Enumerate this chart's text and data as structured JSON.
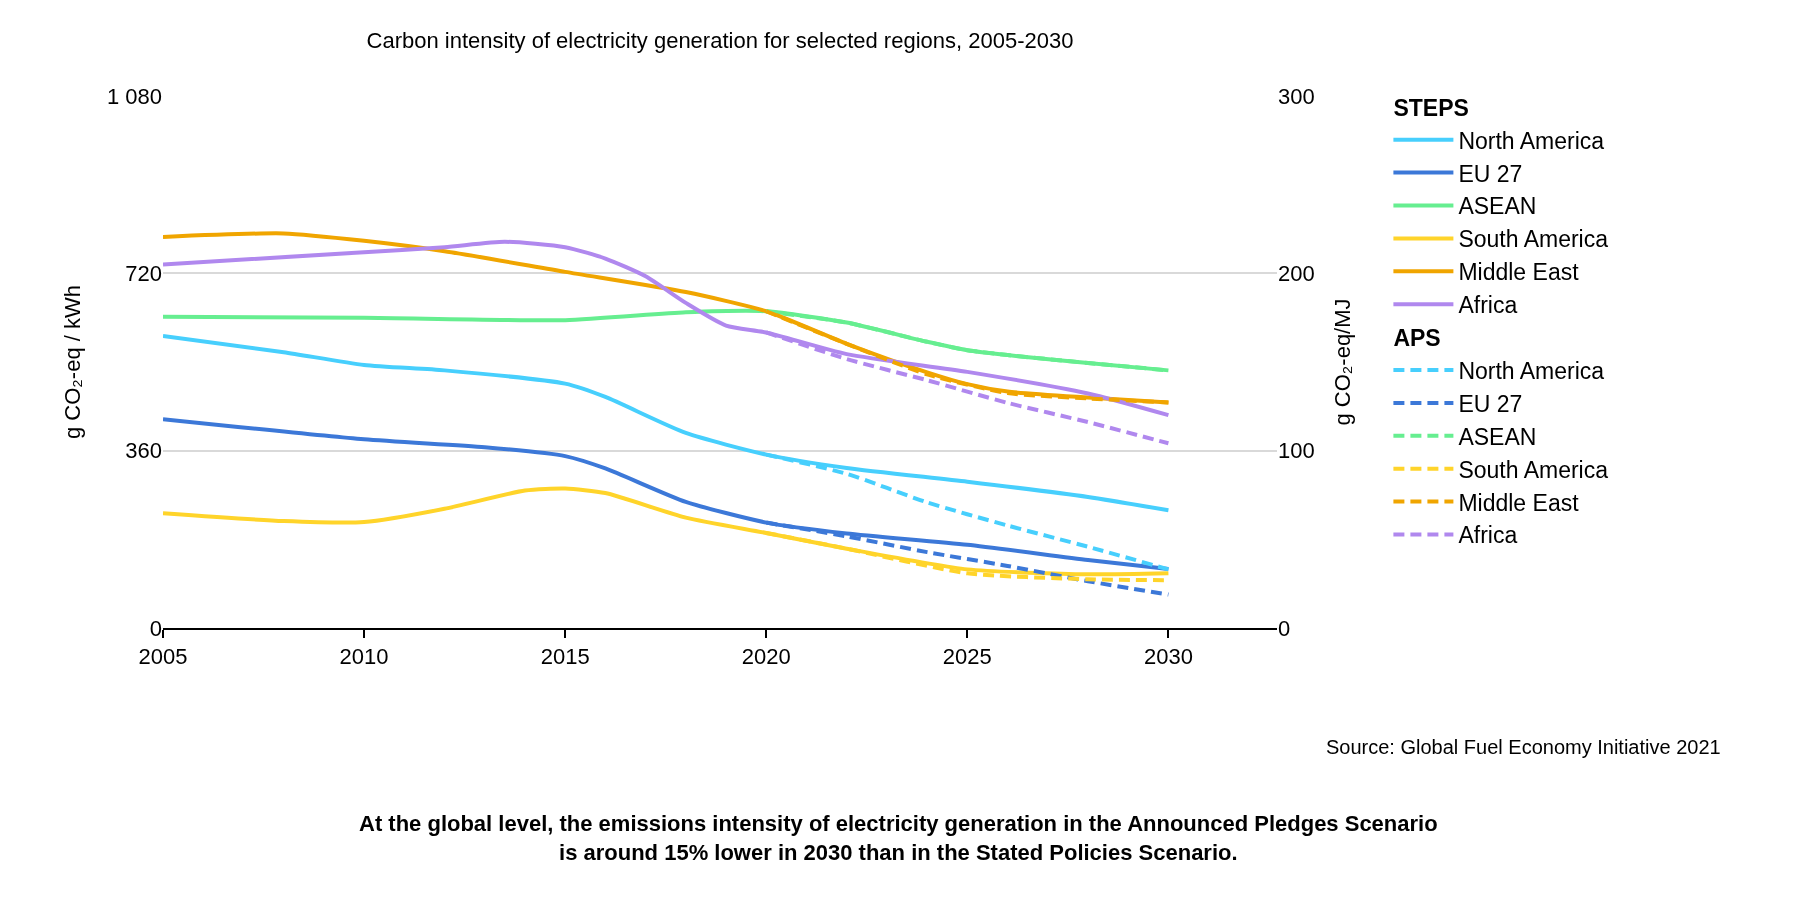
{
  "chart_data": {
    "type": "line",
    "title": "Carbon intensity of electricity generation for selected regions, 2005-2030",
    "ylabel": "g CO₂-eq / kWh",
    "y2label": "g CO₂-eq/MJ",
    "annotations": [
      "STEPS",
      "APS",
      "Source: Global Fuel Economy Initiative 2021",
      "At the global level, the emissions intensity of electricity generation in the Announced Pledges Scenario is around 15% lower in 2030 than in the Stated Policies Scenario."
    ],
    "xlim": [
      2005,
      2032.7
    ],
    "xticks": [
      2005,
      2010,
      2015,
      2020,
      2025,
      2030
    ],
    "ylim": [
      0,
      1080
    ],
    "yticks": [
      0,
      360,
      720,
      {
        "value": 1080,
        "label": "1 080"
      }
    ],
    "y2lim": [
      0,
      300
    ],
    "y2ticks": [
      0,
      100,
      200,
      300
    ],
    "grid": "y",
    "legend": "right",
    "marker": "none",
    "series": [
      {
        "name": "North America",
        "color": "#47cffd",
        "line_style": "solid",
        "x": [
          2005,
          2008,
          2010,
          2012,
          2015,
          2016,
          2018,
          2020,
          2022,
          2025,
          2028,
          2030
        ],
        "values": [
          593,
          560,
          534,
          523,
          496,
          469,
          396,
          352,
          325,
          297,
          266,
          239
        ]
      },
      {
        "name": "EU 27",
        "color": "#3c78d8",
        "line_style": "solid",
        "x": [
          2005,
          2010,
          2013,
          2015,
          2016,
          2018,
          2020,
          2022,
          2025,
          2028,
          2030
        ],
        "values": [
          424,
          383,
          367,
          349,
          324,
          256,
          214,
          192,
          169,
          138,
          120
        ]
      },
      {
        "name": "ASEAN",
        "color": "#66ee90",
        "line_style": "solid",
        "x": [
          2005,
          2010,
          2015,
          2018,
          2020,
          2022,
          2024,
          2025,
          2026,
          2028,
          2030
        ],
        "values": [
          632,
          630,
          625,
          641,
          643,
          620,
          581,
          564,
          554,
          538,
          523
        ]
      },
      {
        "name": "South America",
        "color": "#ffd42a",
        "line_style": "solid",
        "x": [
          2005,
          2008,
          2010,
          2012,
          2014,
          2015,
          2016,
          2018,
          2020,
          2022,
          2025,
          2028,
          2030
        ],
        "values": [
          233,
          217,
          215,
          242,
          279,
          283,
          274,
          224,
          193,
          161,
          119,
          109,
          111
        ]
      },
      {
        "name": "Middle East",
        "color": "#f0a500",
        "line_style": "solid",
        "x": [
          2005,
          2008,
          2010,
          2012,
          2015,
          2018,
          2020,
          2022,
          2024,
          2025,
          2026,
          2028,
          2030
        ],
        "values": [
          794,
          801,
          786,
          765,
          723,
          682,
          643,
          577,
          519,
          495,
          480,
          468,
          458
        ]
      },
      {
        "name": "Africa",
        "color": "#b088ee",
        "line_style": "solid",
        "x": [
          2005,
          2010,
          2012,
          2013.5,
          2015,
          2016,
          2017,
          2018,
          2019,
          2020,
          2022,
          2025,
          2028,
          2030
        ],
        "values": [
          738,
          763,
          773,
          784,
          773,
          750,
          714,
          660,
          614,
          600,
          556,
          520,
          476,
          432
        ]
      },
      {
        "name": "North America",
        "color": "#47cffd",
        "line_style": "dashed",
        "x": [
          2020,
          2022,
          2024,
          2026,
          2028,
          2030
        ],
        "values": [
          352,
          313,
          255,
          208,
          165,
          119
        ]
      },
      {
        "name": "EU 27",
        "color": "#3c78d8",
        "line_style": "dashed",
        "x": [
          2020,
          2022,
          2024,
          2026,
          2028,
          2030
        ],
        "values": [
          214,
          186,
          154,
          126,
          95,
          68
        ]
      },
      {
        "name": "ASEAN",
        "color": "#66ee90",
        "line_style": "dashed",
        "x": [
          2020,
          2022,
          2024,
          2025,
          2026,
          2028,
          2030
        ],
        "values": [
          643,
          620,
          581,
          564,
          554,
          538,
          523
        ]
      },
      {
        "name": "South America",
        "color": "#ffd42a",
        "line_style": "dashed",
        "x": [
          2020,
          2022,
          2025,
          2028,
          2030
        ],
        "values": [
          193,
          161,
          111,
          99,
          97
        ]
      },
      {
        "name": "Middle East",
        "color": "#f0a500",
        "line_style": "dashed",
        "x": [
          2020,
          2022,
          2024,
          2026,
          2028,
          2030
        ],
        "values": [
          643,
          577,
          515,
          477,
          466,
          458
        ]
      },
      {
        "name": "Africa",
        "color": "#b088ee",
        "line_style": "dashed",
        "x": [
          2020,
          2022,
          2024,
          2026,
          2028,
          2030
        ],
        "values": [
          600,
          546,
          503,
          457,
          418,
          375
        ]
      }
    ]
  }
}
